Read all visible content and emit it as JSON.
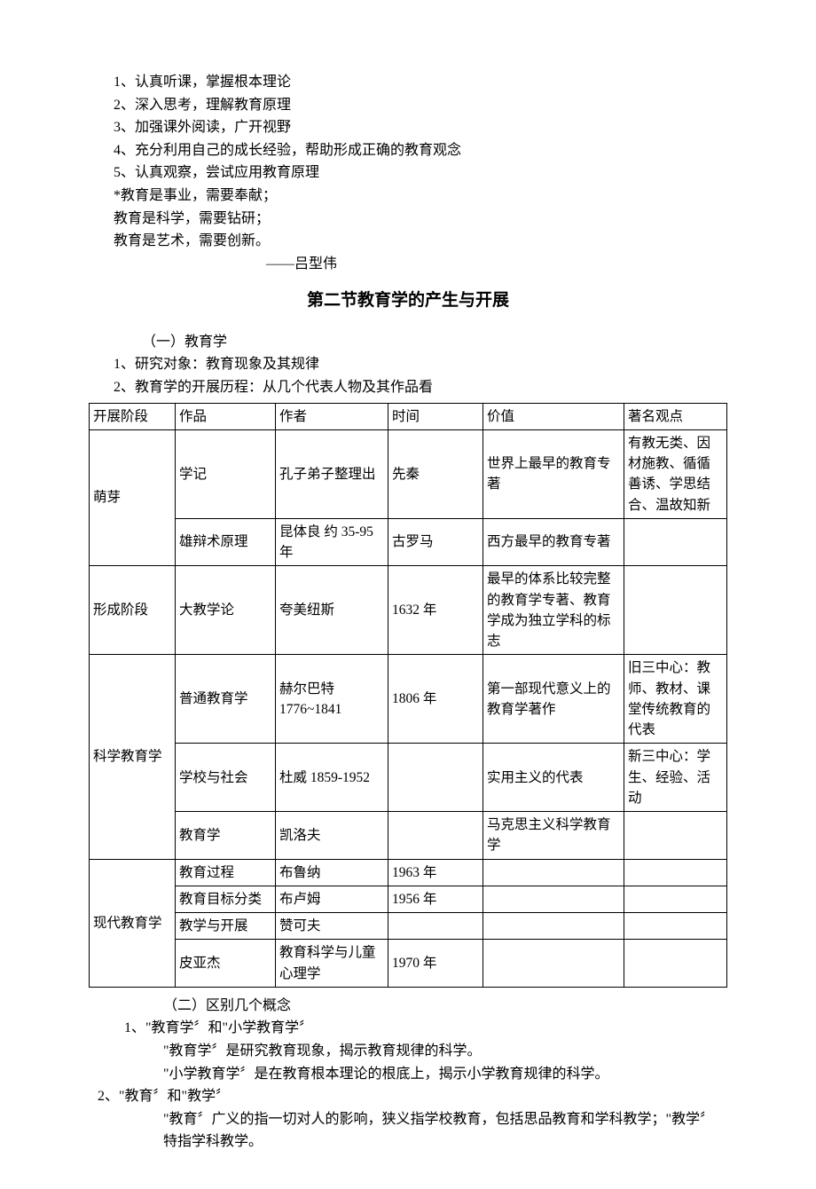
{
  "intro": {
    "items": [
      "1、认真听课，掌握根本理论",
      "2、深入思考，理解教育原理",
      "3、加强课外阅读，广开视野",
      "4、充分利用自己的成长经验，帮助形成正确的教育观念",
      "5、认真观察，尝试应用教育原理"
    ],
    "quotes": [
      "*教育是事业，需要奉献；",
      "教育是科学，需要钻研；",
      "教育是艺术，需要创新。"
    ],
    "attribution": "——吕型伟"
  },
  "section2": {
    "title": "第二节教育学的产生与开展",
    "sub_a": "（一）教育学",
    "line1": "1、研究对象：教育现象及其规律",
    "line2": "2、教育学的开展历程：从几个代表人物及其作品看"
  },
  "table": {
    "headers": [
      "开展阶段",
      "作品",
      "作者",
      "时间",
      "价值",
      "著名观点"
    ],
    "rows": [
      {
        "stage": "萌芽",
        "span": 2,
        "work": "学记",
        "author": "孔子弟子整理出",
        "time": "先秦",
        "value": "世界上最早的教育专著",
        "view": "有教无类、因材施教、循循善诱、学思结合、温故知新"
      },
      {
        "work": "雄辩术原理",
        "author": "昆体良\n约 35-95 年",
        "time": "古罗马",
        "value": "西方最早的教育专著",
        "view": ""
      },
      {
        "stage": "形成阶段",
        "span": 1,
        "work": "大教学论",
        "author": "夸美纽斯",
        "time": "1632 年",
        "value": "最早的体系比较完整的教育学专著、教育学成为独立学科的标志",
        "view": ""
      },
      {
        "stage": "科学教育学",
        "span": 3,
        "work": "普通教育学",
        "author": "赫尔巴特\n1776~1841",
        "time": "1806 年",
        "value": "第一部现代意义上的教育学著作",
        "view": "旧三中心：教师、教材、课堂传统教育的代表"
      },
      {
        "work": "学校与社会",
        "author": "杜威\n1859-1952",
        "time": "",
        "value": "实用主义的代表",
        "view": "新三中心：学生、经验、活动"
      },
      {
        "work": "教育学",
        "author": "凯洛夫",
        "time": "",
        "value": "马克思主义科学教育学",
        "view": ""
      },
      {
        "stage": "现代教育学",
        "span": 4,
        "work": "教育过程",
        "author": "布鲁纳",
        "time": "1963 年",
        "value": "",
        "view": ""
      },
      {
        "work": "教育目标分类",
        "author": "布卢姆",
        "time": "1956 年",
        "value": "",
        "view": ""
      },
      {
        "work": "教学与开展",
        "author": "赞可夫",
        "time": "",
        "value": "",
        "view": ""
      },
      {
        "work": "皮亚杰",
        "author": "教育科学与儿童心理学",
        "time": "1970 年",
        "value": "",
        "view": ""
      }
    ]
  },
  "section_b": {
    "heading": "（二）区别几个概念",
    "p1_head": "1、\"教育学〞和\"小学教育学〞",
    "p1_line1": "\"教育学〞是研究教育现象，揭示教育规律的科学。",
    "p1_line2": "\"小学教育学〞是在教育根本理论的根底上，揭示小学教育规律的科学。",
    "p2_head": "2、\"教育〞和\"教学〞",
    "p2_line1": "\"教育〞广义的指一切对人的影响，狭义指学校教育，包括思品教育和学科教学；\"教学〞",
    "p2_line2": "特指学科教学。"
  }
}
